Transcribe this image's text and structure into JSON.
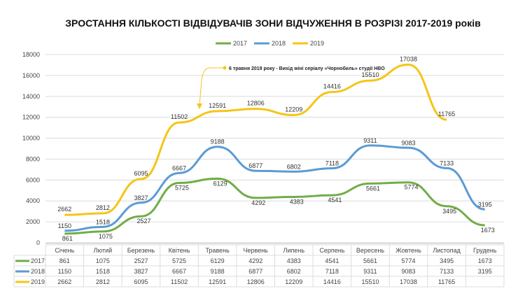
{
  "chart_data": {
    "type": "line",
    "title": "ЗРОСТАННЯ КІЛЬКОСТІ ВІДВІДУВАЧІВ ЗОНИ ВІДЧУЖЕННЯ В РОЗРІЗІ 2017-2019 років",
    "xlabel": "",
    "ylabel": "",
    "ylim": [
      0,
      18000
    ],
    "yticks": [
      0,
      2000,
      4000,
      6000,
      8000,
      10000,
      12000,
      14000,
      16000,
      18000
    ],
    "grid": true,
    "legend_position": "top-center",
    "categories": [
      "Січень",
      "Лютий",
      "Березень",
      "Квітень",
      "Травень",
      "Червень",
      "Липень",
      "Серпень",
      "Вересень",
      "Жовтень",
      "Листопад",
      "Грудень"
    ],
    "series": [
      {
        "name": "2017",
        "color": "#70ad47",
        "values": [
          861,
          1075,
          2527,
          5725,
          6129,
          4292,
          4383,
          4541,
          5661,
          5774,
          3495,
          1673
        ]
      },
      {
        "name": "2018",
        "color": "#5b9bd5",
        "values": [
          1150,
          1518,
          3827,
          6667,
          9188,
          6877,
          6802,
          7118,
          9311,
          9083,
          7133,
          3195
        ]
      },
      {
        "name": "2019",
        "color": "#f5c518",
        "values": [
          2662,
          2812,
          6095,
          11502,
          12591,
          12806,
          12209,
          14416,
          15510,
          17038,
          11765,
          null
        ]
      }
    ],
    "annotation": {
      "text": "6 травня 2019 року - Вихід міні серіалу «Чорнобиль» студії HBO",
      "series": "2019",
      "category": "Травень"
    },
    "data_table": true
  }
}
